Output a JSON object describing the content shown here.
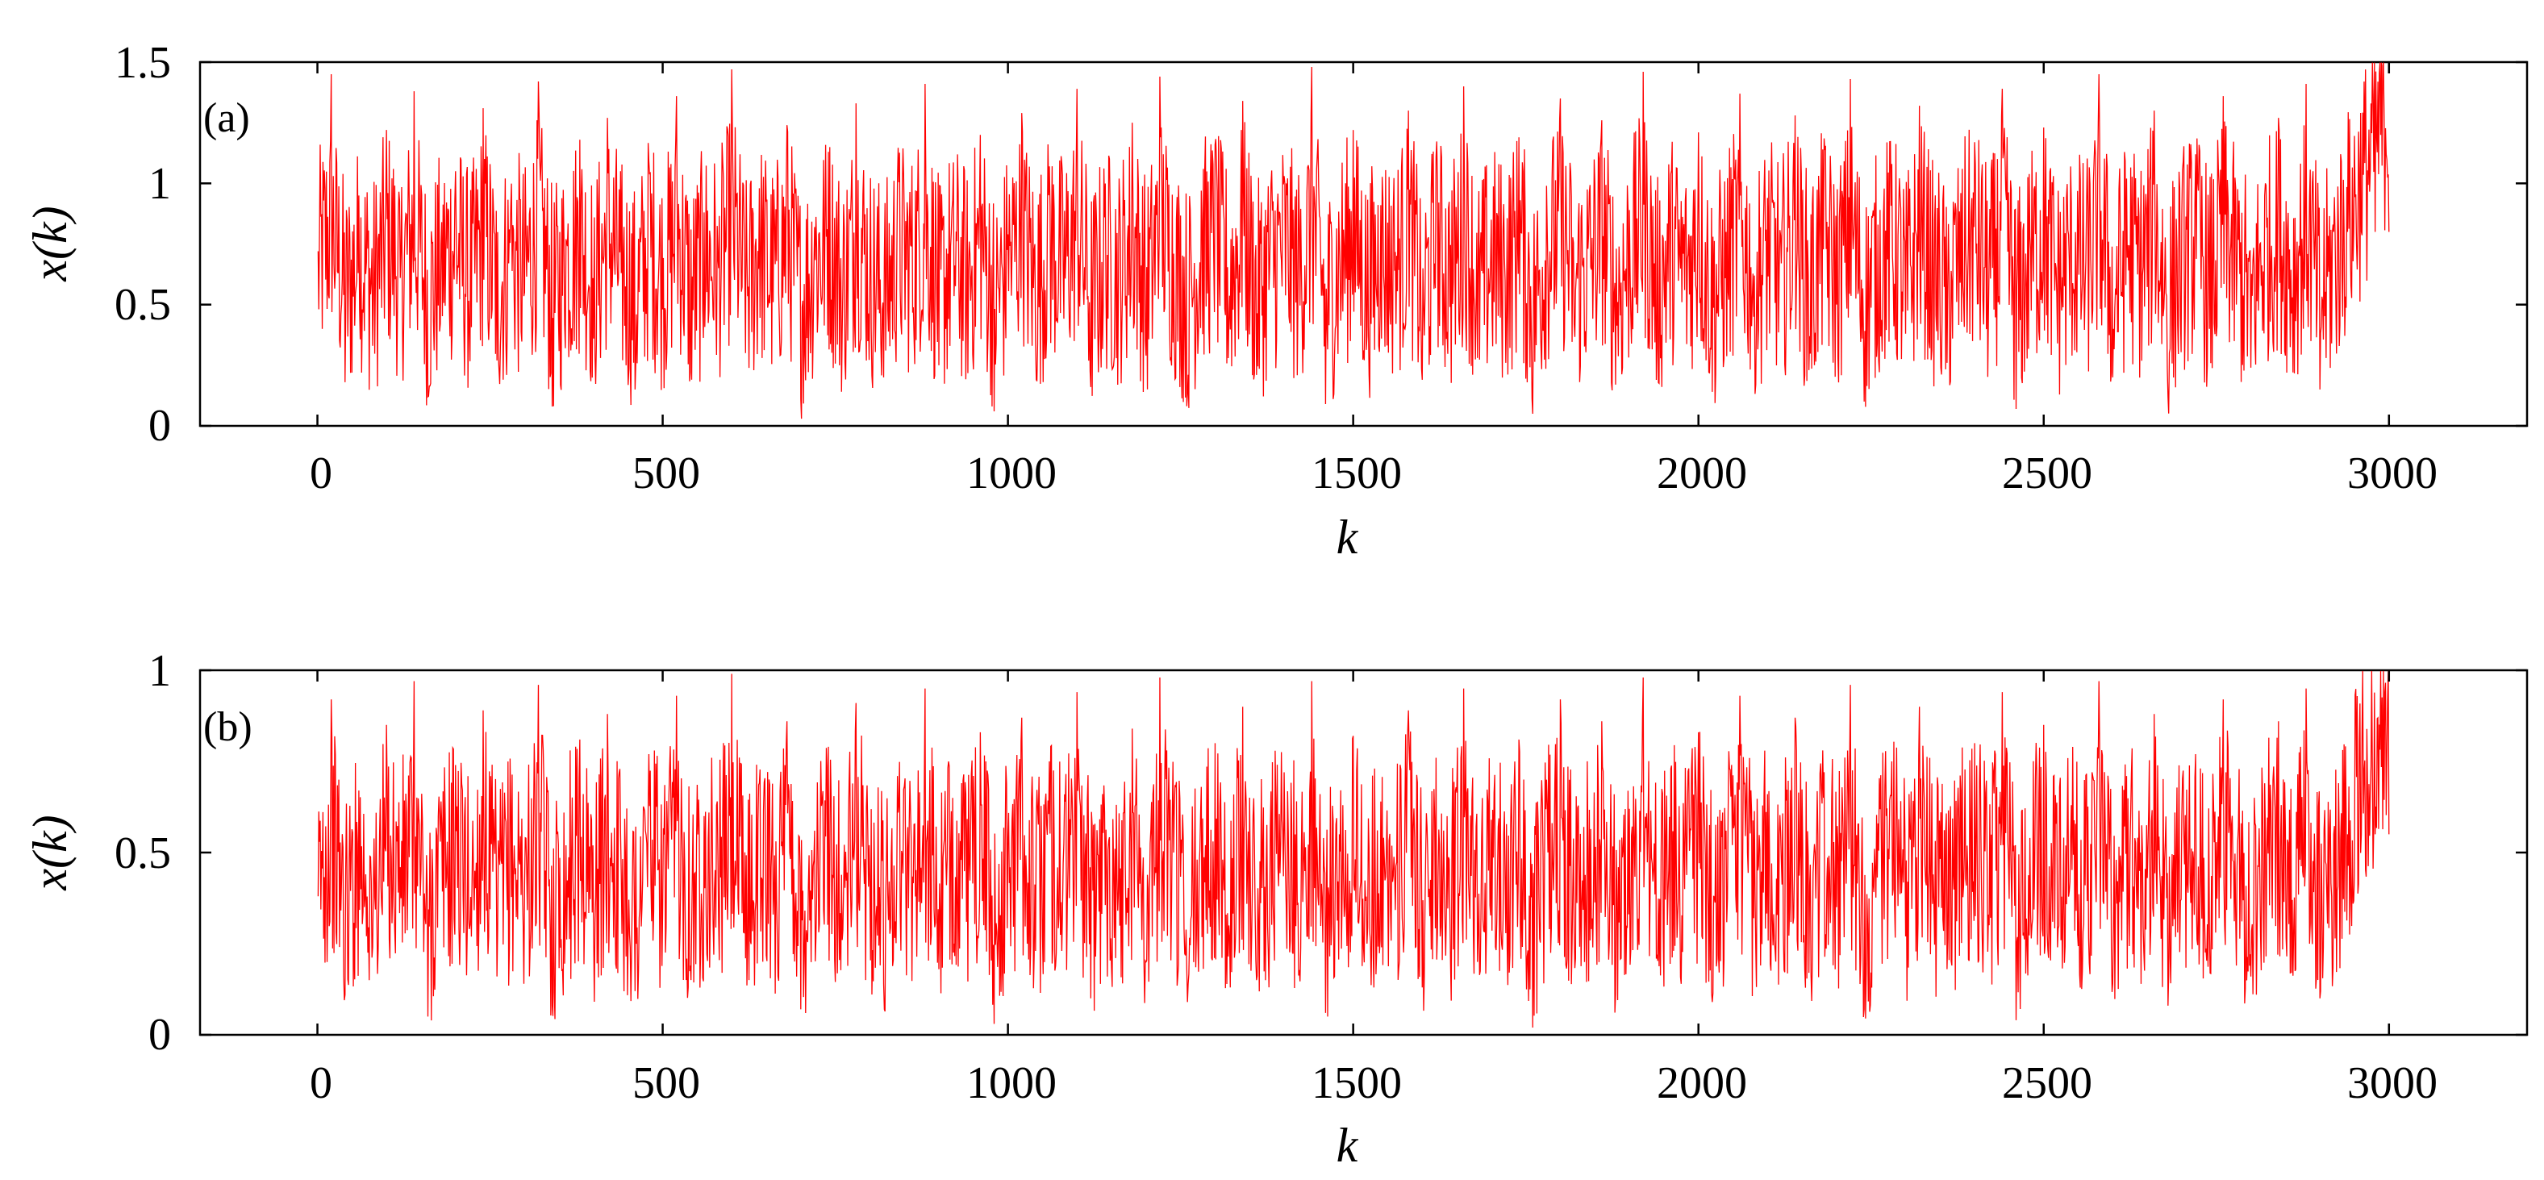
{
  "chart_data": [
    {
      "type": "line",
      "panel_label": "(a)",
      "xlabel": "k",
      "ylabel": "x(k)",
      "xlim": [
        -170,
        3200
      ],
      "ylim": [
        0,
        1.5
      ],
      "xticks": [
        0,
        500,
        1000,
        1500,
        2000,
        2500,
        3000
      ],
      "yticks": [
        0,
        0.5,
        1,
        1.5
      ],
      "xtick_labels": [
        "0",
        "500",
        "1000",
        "1500",
        "2000",
        "2500",
        "3000"
      ],
      "ytick_labels": [
        "0",
        "0.5",
        "1",
        "1.5"
      ],
      "grid": false,
      "series": [
        {
          "color": "#ff0000",
          "x_range": [
            1,
            3000
          ],
          "y_samples_every_20": [
            0.72,
            1.45,
            0.18,
            0.95,
            0.33,
            1.22,
            0.61,
            1.38,
            0.12,
            0.84,
            1.05,
            0.41,
            1.31,
            0.27,
            0.9,
            0.55,
            1.42,
            0.08,
            0.77,
            1.18,
            0.36,
            1.27,
            0.63,
            0.15,
            1.09,
            0.48,
            1.36,
            0.22,
            0.88,
            0.69,
            1.47,
            0.3,
            0.98,
            0.51,
            1.24,
            0.11,
            0.82,
            1.13,
            0.39,
            1.33,
            0.59,
            0.2,
            1.01,
            0.74,
            1.41,
            0.25,
            0.93,
            0.46,
            1.2,
            0.06,
            0.79,
            1.29,
            0.35,
            1.07,
            0.66,
            1.39,
            0.16,
            0.86,
            0.57,
            1.25,
            0.29,
            1.44,
            0.71,
            0.13,
            0.97,
            1.16,
            0.43,
            1.34,
            0.21,
            0.81,
            1.03,
            0.52,
            1.48,
            0.09,
            0.76,
            1.22,
            0.37,
            0.91,
            0.64,
            1.3,
            0.19,
            1.11,
            0.49,
            1.4,
            0.28,
            0.85,
            0.6,
            1.19,
            0.05,
            0.99,
            1.35,
            0.42,
            0.73,
            1.26,
            0.17,
            0.89,
            1.46,
            0.32,
            1.04,
            0.56,
            1.21,
            0.14,
            0.8,
            1.37,
            0.45,
            0.94,
            0.67,
            1.28,
            0.23,
            1.14,
            0.5,
            1.43,
            0.1,
            0.83,
            1.08,
            0.38,
            1.32,
            0.62,
            0.26,
            0.96,
            1.17,
            0.47,
            1.39,
            0.07,
            0.78,
            1.23,
            0.34,
            0.92,
            0.58,
            1.45,
            0.2,
            1.02,
            0.7,
            1.3,
            0.12,
            0.87,
            1.12,
            0.4,
            1.36,
            0.65,
            0.24,
            0.95,
            1.27,
            0.53,
            1.41,
            0.15,
            0.8
          ]
        }
      ]
    },
    {
      "type": "line",
      "panel_label": "(b)",
      "xlabel": "k",
      "ylabel": "x(k)",
      "xlim": [
        -170,
        3200
      ],
      "ylim": [
        0,
        1
      ],
      "xticks": [
        0,
        500,
        1000,
        1500,
        2000,
        2500,
        3000
      ],
      "yticks": [
        0,
        0.5,
        1
      ],
      "xtick_labels": [
        "0",
        "500",
        "1000",
        "1500",
        "2000",
        "2500",
        "3000"
      ],
      "ytick_labels": [
        "0",
        "0.5",
        "1"
      ],
      "grid": false,
      "series": [
        {
          "color": "#ff0000",
          "x_range": [
            1,
            3000
          ],
          "y_samples_every_20": [
            0.38,
            0.92,
            0.11,
            0.67,
            0.24,
            0.85,
            0.46,
            0.97,
            0.05,
            0.58,
            0.74,
            0.29,
            0.89,
            0.16,
            0.63,
            0.41,
            0.96,
            0.08,
            0.52,
            0.81,
            0.27,
            0.88,
            0.44,
            0.12,
            0.77,
            0.35,
            0.93,
            0.19,
            0.6,
            0.49,
            0.99,
            0.21,
            0.69,
            0.33,
            0.86,
            0.07,
            0.56,
            0.79,
            0.26,
            0.91,
            0.42,
            0.14,
            0.71,
            0.53,
            0.95,
            0.18,
            0.65,
            0.31,
            0.83,
            0.03,
            0.54,
            0.87,
            0.23,
            0.75,
            0.47,
            0.94,
            0.1,
            0.61,
            0.39,
            0.84,
            0.2,
            0.98,
            0.5,
            0.09,
            0.68,
            0.8,
            0.3,
            0.9,
            0.15,
            0.57,
            0.72,
            0.36,
            0.97,
            0.06,
            0.55,
            0.82,
            0.25,
            0.64,
            0.45,
            0.89,
            0.13,
            0.76,
            0.34,
            0.95,
            0.2,
            0.59,
            0.43,
            0.81,
            0.02,
            0.7,
            0.92,
            0.28,
            0.51,
            0.86,
            0.11,
            0.62,
            0.98,
            0.22,
            0.73,
            0.4,
            0.83,
            0.09,
            0.56,
            0.93,
            0.32,
            0.66,
            0.48,
            0.87,
            0.17,
            0.78,
            0.35,
            0.96,
            0.07,
            0.58,
            0.75,
            0.27,
            0.9,
            0.44,
            0.18,
            0.67,
            0.8,
            0.33,
            0.94,
            0.04,
            0.54,
            0.85,
            0.24,
            0.63,
            0.41,
            0.97,
            0.14,
            0.71,
            0.5,
            0.88,
            0.08,
            0.6,
            0.77,
            0.29,
            0.92,
            0.46,
            0.16,
            0.69,
            0.86,
            0.37,
            0.95,
            0.1,
            0.55
          ]
        }
      ]
    }
  ]
}
